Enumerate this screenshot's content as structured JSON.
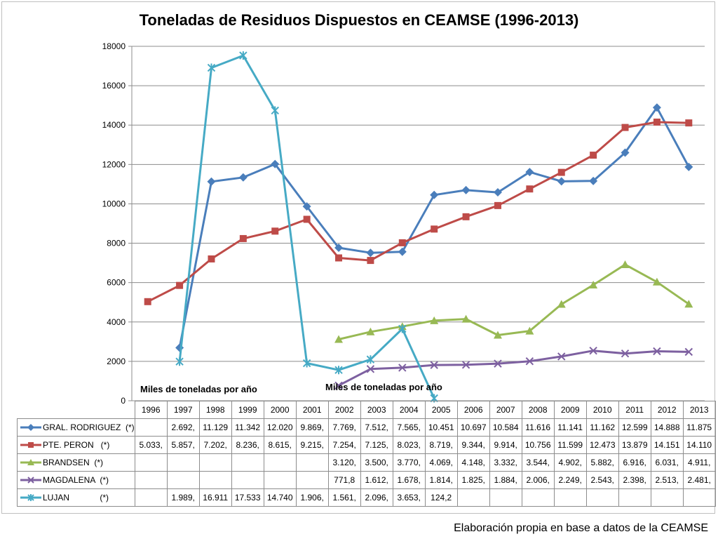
{
  "chart_data": {
    "type": "line",
    "title": "Toneladas de Residuos Dispuestos en CEAMSE (1996-2013)",
    "xlabel": "",
    "ylabel": "",
    "ylim": [
      0,
      18000
    ],
    "yticks": [
      0,
      2000,
      4000,
      6000,
      8000,
      10000,
      12000,
      14000,
      16000,
      18000
    ],
    "grid": true,
    "legend": "table-bottom",
    "categories": [
      "1996",
      "1997",
      "1998",
      "1999",
      "2000",
      "2001",
      "2002",
      "2003",
      "2004",
      "2005",
      "2006",
      "2007",
      "2008",
      "2009",
      "2010",
      "2011",
      "2012",
      "2013"
    ],
    "series": [
      {
        "name": "GRAL. RODRIGUEZ  (*)",
        "color": "#4a7ebb",
        "marker": "diamond",
        "values": [
          null,
          2692,
          11129,
          11342,
          12020,
          9869,
          7769,
          7512,
          7565,
          10451,
          10697,
          10584,
          11616,
          11141,
          11162,
          12599,
          14888,
          11875
        ],
        "labels": [
          "",
          "2.692,",
          "11.129",
          "11.342",
          "12.020",
          "9.869,",
          "7.769,",
          "7.512,",
          "7.565,",
          "10.451",
          "10.697",
          "10.584",
          "11.616",
          "11.141",
          "11.162",
          "12.599",
          "14.888",
          "11.875"
        ]
      },
      {
        "name": "PTE. PERON   (*)",
        "color": "#be4b48",
        "marker": "square",
        "values": [
          5033,
          5857,
          7202,
          8236,
          8615,
          9215,
          7254,
          7125,
          8023,
          8719,
          9344,
          9914,
          10756,
          11599,
          12473,
          13879,
          14151,
          14110
        ],
        "labels": [
          "5.033,",
          "5.857,",
          "7.202,",
          "8.236,",
          "8.615,",
          "9.215,",
          "7.254,",
          "7.125,",
          "8.023,",
          "8.719,",
          "9.344,",
          "9.914,",
          "10.756",
          "11.599",
          "12.473",
          "13.879",
          "14.151",
          "14.110"
        ]
      },
      {
        "name": "BRANDSEN  (*)",
        "color": "#98b954",
        "marker": "triangle",
        "values": [
          null,
          null,
          null,
          null,
          null,
          null,
          3120,
          3500,
          3770,
          4069,
          4148,
          3332,
          3544,
          4902,
          5882,
          6916,
          6031,
          4911
        ],
        "labels": [
          "",
          "",
          "",
          "",
          "",
          "",
          "3.120,",
          "3.500,",
          "3.770,",
          "4.069,",
          "4.148,",
          "3.332,",
          "3.544,",
          "4.902,",
          "5.882,",
          "6.916,",
          "6.031,",
          "4.911,"
        ]
      },
      {
        "name": "MAGDALENA  (*)",
        "color": "#7d60a0",
        "marker": "x",
        "values": [
          null,
          null,
          null,
          null,
          null,
          null,
          771.8,
          1612,
          1678,
          1814,
          1825,
          1884,
          2006,
          2249,
          2543,
          2398,
          2513,
          2481
        ],
        "labels": [
          "",
          "",
          "",
          "",
          "",
          "",
          "771,8",
          "1.612,",
          "1.678,",
          "1.814,",
          "1.825,",
          "1.884,",
          "2.006,",
          "2.249,",
          "2.543,",
          "2.398,",
          "2.513,",
          "2.481,"
        ]
      },
      {
        "name": "LUJAN             (*)",
        "color": "#46aac5",
        "marker": "star",
        "values": [
          null,
          1989,
          16911,
          17533,
          14740,
          1906,
          1561,
          2096,
          3653,
          124.2,
          null,
          null,
          null,
          null,
          null,
          null,
          null,
          null
        ],
        "labels": [
          "",
          "1.989,",
          "16.911",
          "17.533",
          "14.740",
          "1.906,",
          "1.561,",
          "2.096,",
          "3.653,",
          "124,2",
          "",
          "",
          "",
          "",
          "",
          "",
          "",
          ""
        ]
      }
    ],
    "annotations": [
      "Miles de toneladas por año",
      "Miles de toneladas por año"
    ]
  },
  "footer": "Elaboración propia en base a datos de la CEAMSE"
}
